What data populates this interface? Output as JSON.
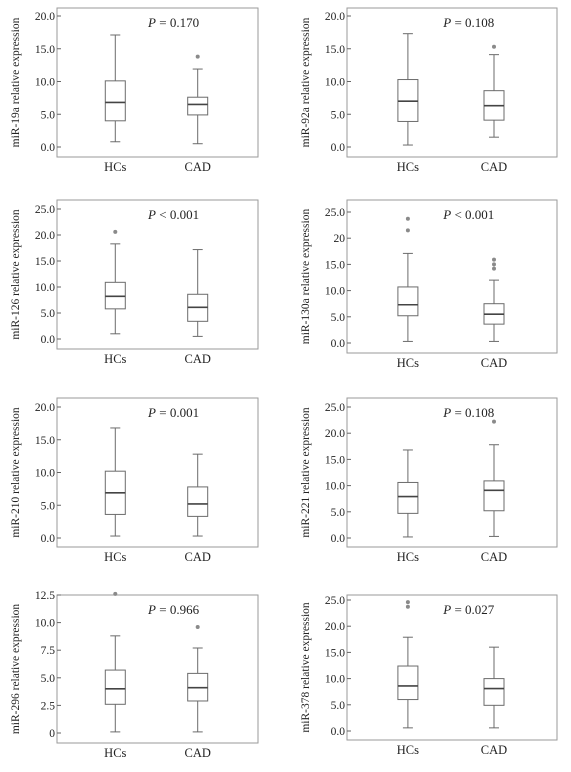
{
  "colors": {
    "box_stroke": "#6b6b6b",
    "frame": "#9a9a9a",
    "outlier": "#8a8a8a",
    "axis": "#666666",
    "text": "#222222"
  },
  "chart_data": [
    {
      "type": "boxplot",
      "ylabel": "miR-19a relative expression",
      "p_prefix": "P",
      "p_rest": " = 0.170",
      "ylim": [
        0,
        20
      ],
      "yticks": [
        0,
        5,
        10,
        15,
        20
      ],
      "yticklabels": [
        "0.0",
        "5.0",
        "10.0",
        "15.0",
        "20.0"
      ],
      "categories": [
        "HCs",
        "CAD"
      ],
      "boxes": [
        {
          "name": "HCs",
          "min": 0.8,
          "q1": 4.0,
          "median": 6.8,
          "q3": 10.1,
          "max": 17.1,
          "outliers": []
        },
        {
          "name": "CAD",
          "min": 0.5,
          "q1": 4.9,
          "median": 6.5,
          "q3": 7.6,
          "max": 11.9,
          "outliers": [
            13.8
          ]
        }
      ]
    },
    {
      "type": "boxplot",
      "ylabel": "miR-92a relative expression",
      "p_prefix": "P",
      "p_rest": " = 0.108",
      "ylim": [
        0,
        20
      ],
      "yticks": [
        0,
        5,
        10,
        15,
        20
      ],
      "yticklabels": [
        "0.0",
        "5.0",
        "10.0",
        "15.0",
        "20.0"
      ],
      "categories": [
        "HCs",
        "CAD"
      ],
      "boxes": [
        {
          "name": "HCs",
          "min": 0.3,
          "q1": 3.9,
          "median": 7.0,
          "q3": 10.3,
          "max": 17.3,
          "outliers": []
        },
        {
          "name": "CAD",
          "min": 1.5,
          "q1": 4.1,
          "median": 6.3,
          "q3": 8.6,
          "max": 14.1,
          "outliers": [
            15.3
          ]
        }
      ]
    },
    {
      "type": "boxplot",
      "ylabel": "miR-126 relative expression",
      "p_prefix": "P",
      "p_rest": " < 0.001",
      "ylim": [
        0,
        25
      ],
      "yticks": [
        0,
        5,
        10,
        15,
        20,
        25
      ],
      "yticklabels": [
        "0.0",
        "5.0",
        "10.0",
        "15.0",
        "20.0",
        "25.0"
      ],
      "categories": [
        "HCs",
        "CAD"
      ],
      "boxes": [
        {
          "name": "HCs",
          "min": 1.0,
          "q1": 5.8,
          "median": 8.2,
          "q3": 10.9,
          "max": 18.3,
          "outliers": [
            20.6
          ]
        },
        {
          "name": "CAD",
          "min": 0.5,
          "q1": 3.4,
          "median": 6.1,
          "q3": 8.6,
          "max": 17.2,
          "outliers": []
        }
      ]
    },
    {
      "type": "boxplot",
      "ylabel": "miR-130a relative expression",
      "p_prefix": "P",
      "p_rest": " < 0.001",
      "ylim": [
        0,
        25
      ],
      "yticks": [
        0,
        5,
        10,
        15,
        20,
        25
      ],
      "yticklabels": [
        "0.0",
        "5.0",
        "10.0",
        "15.0",
        "20",
        "25.0"
      ],
      "categories": [
        "HCs",
        "CAD"
      ],
      "boxes": [
        {
          "name": "HCs",
          "min": 0.3,
          "q1": 5.2,
          "median": 7.3,
          "q3": 10.7,
          "max": 17.1,
          "outliers": [
            21.5,
            23.7
          ]
        },
        {
          "name": "CAD",
          "min": 0.3,
          "q1": 3.6,
          "median": 5.5,
          "q3": 7.5,
          "max": 12.0,
          "outliers": [
            14.2,
            15.0,
            15.9
          ]
        }
      ]
    },
    {
      "type": "boxplot",
      "ylabel": "miR-210 relative expression",
      "p_prefix": "P",
      "p_rest": " = 0.001",
      "ylim": [
        0,
        20
      ],
      "yticks": [
        0,
        5,
        10,
        15,
        20
      ],
      "yticklabels": [
        "0.0",
        "5.0",
        "10.0",
        "15.0",
        "20.0"
      ],
      "categories": [
        "HCs",
        "CAD"
      ],
      "boxes": [
        {
          "name": "HCs",
          "min": 0.3,
          "q1": 3.6,
          "median": 6.9,
          "q3": 10.2,
          "max": 16.8,
          "outliers": []
        },
        {
          "name": "CAD",
          "min": 0.3,
          "q1": 3.3,
          "median": 5.2,
          "q3": 7.8,
          "max": 12.8,
          "outliers": []
        }
      ]
    },
    {
      "type": "boxplot",
      "ylabel": "miR-221 relative expression",
      "p_prefix": "P",
      "p_rest": " = 0.108",
      "ylim": [
        0,
        25
      ],
      "yticks": [
        0,
        5,
        10,
        15,
        20,
        25
      ],
      "yticklabels": [
        "0.0",
        "5.0",
        "10.0",
        "15.0",
        "20.0",
        "25.0"
      ],
      "categories": [
        "HCs",
        "CAD"
      ],
      "boxes": [
        {
          "name": "HCs",
          "min": 0.2,
          "q1": 4.7,
          "median": 7.9,
          "q3": 10.6,
          "max": 16.8,
          "outliers": []
        },
        {
          "name": "CAD",
          "min": 0.3,
          "q1": 5.2,
          "median": 9.1,
          "q3": 10.9,
          "max": 17.8,
          "outliers": [
            22.2
          ]
        }
      ]
    },
    {
      "type": "boxplot",
      "ylabel": "miR-296 relative expression",
      "p_prefix": "P",
      "p_rest": " = 0.966",
      "ylim": [
        0,
        14
      ],
      "yticks": [
        0,
        2.5,
        5,
        7.5,
        10,
        12.5
      ],
      "yticklabels": [
        "0",
        "2.5",
        "5.0",
        "7.5",
        "10.0",
        "12.5"
      ],
      "categories": [
        "HCs",
        "CAD"
      ],
      "boxes": [
        {
          "name": "HCs",
          "min": 0.1,
          "q1": 2.6,
          "median": 4.0,
          "q3": 5.7,
          "max": 8.8,
          "outliers": [
            12.6
          ]
        },
        {
          "name": "CAD",
          "min": 0.1,
          "q1": 2.9,
          "median": 4.1,
          "q3": 5.4,
          "max": 7.7,
          "outliers": [
            9.6
          ]
        }
      ]
    },
    {
      "type": "boxplot",
      "ylabel": "miR-378 relative expression",
      "p_prefix": "P",
      "p_rest": " = 0.027",
      "ylim": [
        0,
        25
      ],
      "yticks": [
        0,
        5,
        10,
        15,
        20,
        25
      ],
      "yticklabels": [
        "0.0",
        "5.0",
        "10.0",
        "15.0",
        "20.0",
        "25.0"
      ],
      "categories": [
        "HCs",
        "CAD"
      ],
      "boxes": [
        {
          "name": "HCs",
          "min": 0.6,
          "q1": 6.0,
          "median": 8.6,
          "q3": 12.4,
          "max": 17.9,
          "outliers": [
            23.7,
            24.6
          ]
        },
        {
          "name": "CAD",
          "min": 0.6,
          "q1": 4.9,
          "median": 8.1,
          "q3": 10.0,
          "max": 16.0,
          "outliers": []
        }
      ]
    }
  ]
}
